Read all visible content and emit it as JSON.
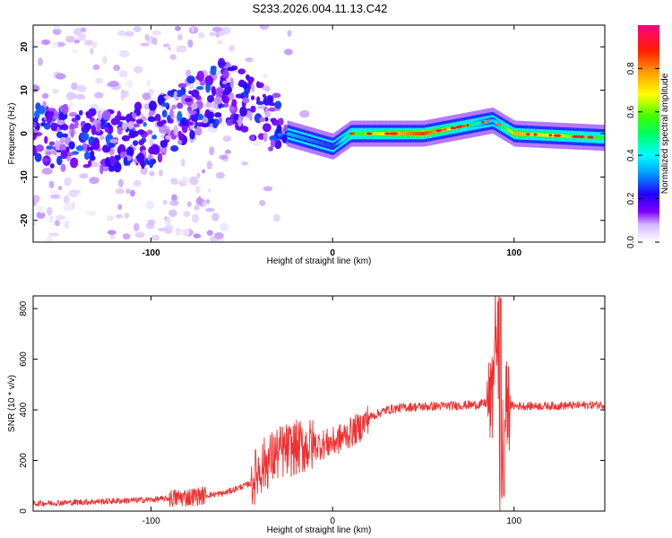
{
  "title": "S233.2026.004.11.13.C42",
  "colors": {
    "snr_line": "#f03030",
    "colormap": [
      "#ffffff",
      "#cfb0ff",
      "#8000ff",
      "#2000ff",
      "#00a0ff",
      "#00ffff",
      "#00ff60",
      "#40ff00",
      "#ffff00",
      "#ffa000",
      "#ff2000",
      "#ff0080"
    ]
  },
  "chart_data": [
    {
      "type": "heatmap",
      "title": "S233.2026.004.11.13.C42",
      "xlabel": "Height of straight line (km)",
      "ylabel": "Frequency (Hz)",
      "xlim": [
        -165,
        150
      ],
      "ylim": [
        -25,
        25
      ],
      "xticks": [
        -100,
        0,
        100
      ],
      "yticks": [
        -20,
        -10,
        0,
        10,
        20
      ],
      "xtick_labels": [
        "-100",
        "0",
        "100"
      ],
      "ytick_labels": [
        "-20",
        "-10",
        "0",
        "10",
        "20"
      ],
      "colorbar": {
        "label": "Normalized spectral amplitude",
        "range": [
          0,
          1
        ],
        "ticks": [
          0.0,
          0.2,
          0.4,
          0.6,
          0.8
        ],
        "tick_labels": [
          "0.0",
          "0.2",
          "0.4",
          "0.6",
          "0.8"
        ]
      },
      "ridge": [
        {
          "x": -165,
          "freq": 0,
          "amp": 0.3
        },
        {
          "x": -130,
          "freq": -2,
          "amp": 0.35
        },
        {
          "x": -100,
          "freq": 0,
          "amp": 0.3
        },
        {
          "x": -80,
          "freq": 5,
          "amp": 0.35
        },
        {
          "x": -60,
          "freq": 10,
          "amp": 0.3
        },
        {
          "x": -40,
          "freq": 5,
          "amp": 0.3
        },
        {
          "x": -25,
          "freq": 0,
          "amp": 0.4
        },
        {
          "x": 0,
          "freq": -3,
          "amp": 0.3
        },
        {
          "x": 10,
          "freq": 0,
          "amp": 0.6
        },
        {
          "x": 50,
          "freq": 0,
          "amp": 0.9
        },
        {
          "x": 88,
          "freq": 3,
          "amp": 0.4
        },
        {
          "x": 100,
          "freq": 0,
          "amp": 0.8
        },
        {
          "x": 150,
          "freq": -1,
          "amp": 0.6
        }
      ]
    },
    {
      "type": "line",
      "xlabel": "Height of straight line (km)",
      "ylabel": "SNR (10 * v/v)",
      "xlim": [
        -165,
        150
      ],
      "ylim": [
        0,
        850
      ],
      "xticks": [
        -100,
        0,
        100
      ],
      "yticks": [
        0,
        200,
        400,
        600,
        800
      ],
      "xtick_labels": [
        "-100",
        "0",
        "100"
      ],
      "ytick_labels": [
        "0",
        "200",
        "400",
        "600",
        "800"
      ],
      "series": [
        {
          "name": "SNR",
          "x": [
            -165,
            -140,
            -120,
            -100,
            -80,
            -60,
            -45,
            -40,
            -30,
            -20,
            -10,
            0,
            10,
            15,
            20,
            30,
            40,
            60,
            80,
            88,
            90,
            92,
            94,
            96,
            100,
            120,
            150
          ],
          "y": [
            30,
            35,
            40,
            45,
            55,
            70,
            110,
            170,
            230,
            250,
            260,
            270,
            310,
            330,
            370,
            400,
            410,
            415,
            420,
            430,
            800,
            50,
            330,
            420,
            415,
            415,
            420
          ]
        }
      ]
    }
  ]
}
